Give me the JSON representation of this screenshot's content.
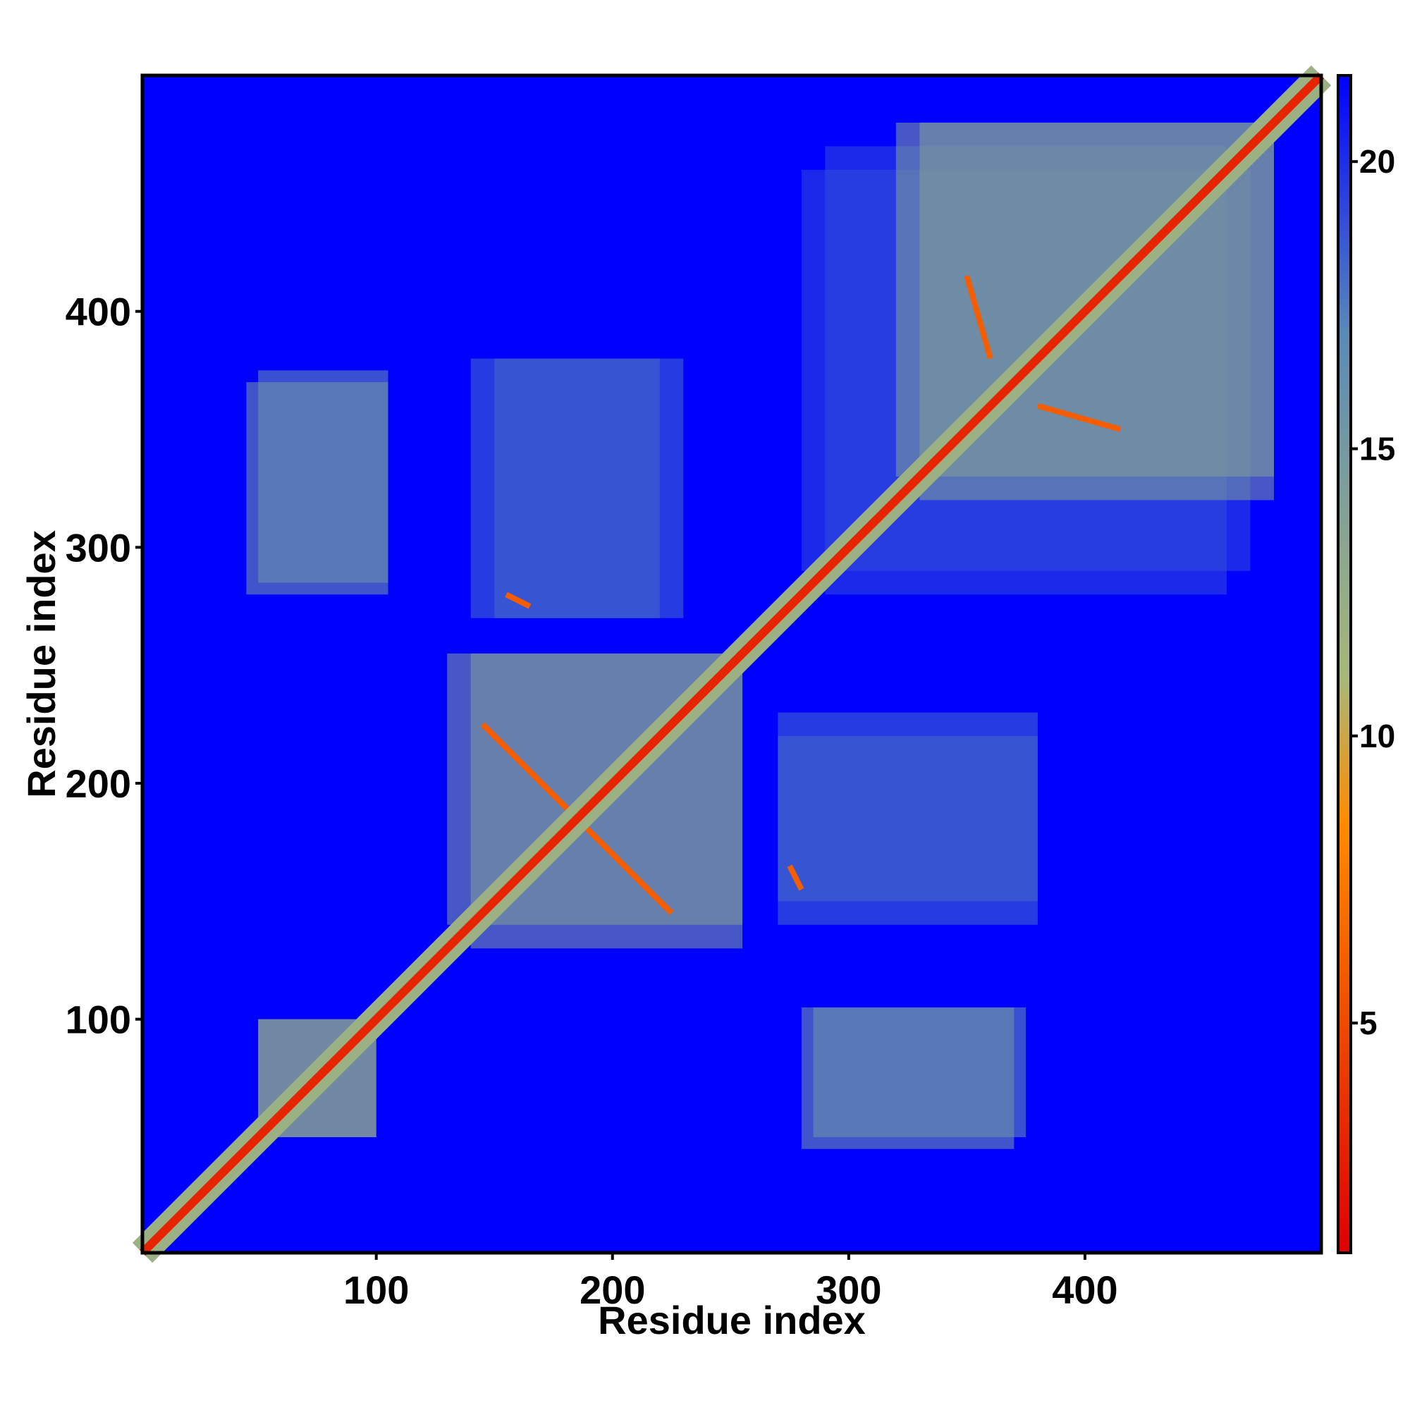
{
  "chart_data": {
    "type": "heatmap",
    "title": "",
    "xlabel": "Residue index",
    "ylabel": "Residue index",
    "xlim": [
      1,
      500
    ],
    "ylim": [
      1,
      500
    ],
    "x_ticks": [
      "100",
      "200",
      "300",
      "400"
    ],
    "y_ticks": [
      "100",
      "200",
      "300",
      "400"
    ],
    "x_tick_values": [
      100,
      200,
      300,
      400
    ],
    "y_tick_values": [
      100,
      200,
      300,
      400
    ],
    "colorbar": {
      "range": [
        1,
        21.5
      ],
      "ticks": [
        "5",
        "10",
        "15",
        "20"
      ],
      "tick_values": [
        5,
        10,
        15,
        20
      ],
      "colors": [
        "#dd0000",
        "#ff8c00",
        "#a8b878",
        "#5a8ab8",
        "#0000ff"
      ],
      "color_stops": [
        1,
        8.5,
        11,
        17,
        21.5
      ]
    },
    "cells": [
      {
        "kind": "diagonal",
        "from": 1,
        "to": 500,
        "value": 3
      },
      {
        "kind": "block",
        "x": [
          130,
          255
        ],
        "y": [
          140,
          255
        ],
        "value": 14
      },
      {
        "kind": "block",
        "x": [
          330,
          480
        ],
        "y": [
          320,
          480
        ],
        "value": 14
      },
      {
        "kind": "block",
        "x": [
          50,
          100
        ],
        "y": [
          50,
          100
        ],
        "value": 13
      },
      {
        "kind": "block",
        "x": [
          50,
          105
        ],
        "y": [
          285,
          375
        ],
        "value": 16
      },
      {
        "kind": "block",
        "x": [
          280,
          370
        ],
        "y": [
          45,
          105
        ],
        "value": 15
      },
      {
        "kind": "block",
        "x": [
          140,
          230
        ],
        "y": [
          270,
          380
        ],
        "value": 18
      },
      {
        "kind": "block",
        "x": [
          270,
          380
        ],
        "y": [
          150,
          220
        ],
        "value": 18
      },
      {
        "kind": "block",
        "x": [
          290,
          460
        ],
        "y": [
          280,
          470
        ],
        "value": 19
      },
      {
        "kind": "strand",
        "x": [
          145,
          225
        ],
        "y": [
          225,
          145
        ],
        "value": 6
      },
      {
        "kind": "strand",
        "x": [
          350,
          360
        ],
        "y": [
          415,
          380
        ],
        "value": 6
      },
      {
        "kind": "strand",
        "x": [
          275,
          280
        ],
        "y": [
          165,
          155
        ],
        "value": 6
      }
    ]
  }
}
